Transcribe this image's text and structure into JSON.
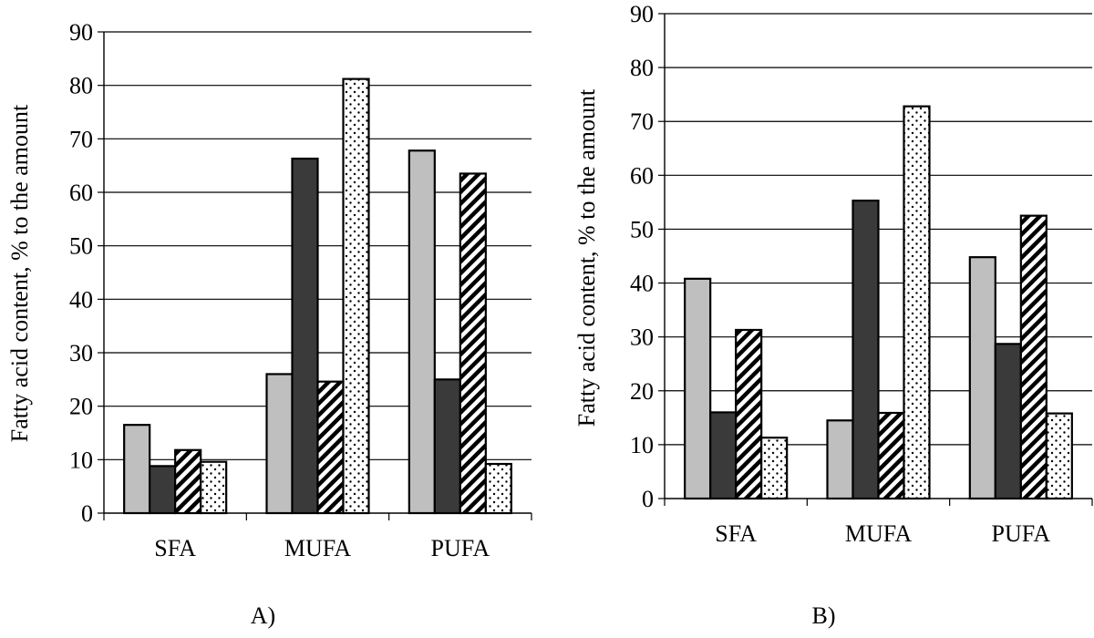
{
  "chart_data": [
    {
      "type": "bar",
      "panel_label": "A)",
      "ylabel": "Fatty acid content, % to the amount",
      "ylim": [
        0,
        90
      ],
      "yticks": [
        "0",
        "10",
        "20",
        "30",
        "40",
        "50",
        "60",
        "70",
        "80",
        "90"
      ],
      "grid": true,
      "legend": "none",
      "categories": [
        "SFA",
        "MUFA",
        "PUFA"
      ],
      "series": [
        {
          "values": [
            16.5,
            26,
            67.8
          ],
          "pattern": "solid-light-gray",
          "color": "#bfbfbf"
        },
        {
          "values": [
            8.8,
            66.3,
            25
          ],
          "pattern": "solid-dark-gray",
          "color": "#3a3a3a"
        },
        {
          "values": [
            11.8,
            24.6,
            63.5
          ],
          "pattern": "diagonal-stripes",
          "color": "#000000"
        },
        {
          "values": [
            9.6,
            81.2,
            9.2
          ],
          "pattern": "dots",
          "color": "#000000"
        }
      ]
    },
    {
      "type": "bar",
      "panel_label": "B)",
      "ylabel": "Fatty acid content, % to the amount",
      "ylim": [
        0,
        90
      ],
      "yticks": [
        "0",
        "10",
        "20",
        "30",
        "40",
        "50",
        "60",
        "70",
        "80",
        "90"
      ],
      "grid": true,
      "legend": "none",
      "categories": [
        "SFA",
        "MUFA",
        "PUFA"
      ],
      "series": [
        {
          "values": [
            40.8,
            14.5,
            44.8
          ],
          "pattern": "solid-light-gray",
          "color": "#bfbfbf"
        },
        {
          "values": [
            16,
            55.3,
            28.7
          ],
          "pattern": "solid-dark-gray",
          "color": "#3a3a3a"
        },
        {
          "values": [
            31.3,
            15.9,
            52.5
          ],
          "pattern": "diagonal-stripes",
          "color": "#000000"
        },
        {
          "values": [
            11.3,
            72.8,
            15.8
          ],
          "pattern": "dots",
          "color": "#000000"
        }
      ]
    }
  ]
}
